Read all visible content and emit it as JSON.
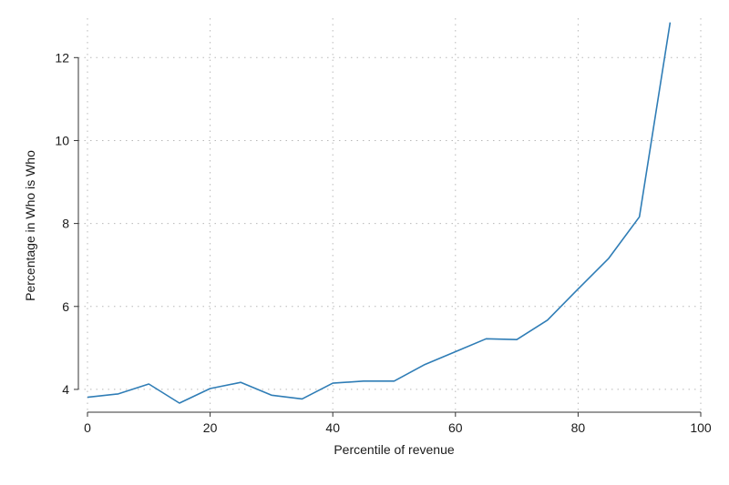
{
  "chart_data": {
    "type": "line",
    "xlabel": "Percentile of revenue",
    "ylabel": "Percentage in Who is Who",
    "xlim": [
      0,
      100
    ],
    "ylim": [
      3.45,
      12.95
    ],
    "x_ticks": [
      0,
      20,
      40,
      60,
      80,
      100
    ],
    "y_ticks": [
      4,
      6,
      8,
      10,
      12
    ],
    "grid": true,
    "series": [
      {
        "color": "#2f7db6",
        "points": [
          {
            "x": 0,
            "y": 3.81
          },
          {
            "x": 5,
            "y": 3.89
          },
          {
            "x": 10,
            "y": 4.13
          },
          {
            "x": 15,
            "y": 3.67
          },
          {
            "x": 20,
            "y": 4.02
          },
          {
            "x": 25,
            "y": 4.17
          },
          {
            "x": 30,
            "y": 3.86
          },
          {
            "x": 35,
            "y": 3.77
          },
          {
            "x": 40,
            "y": 4.15
          },
          {
            "x": 45,
            "y": 4.2
          },
          {
            "x": 50,
            "y": 4.2
          },
          {
            "x": 55,
            "y": 4.6
          },
          {
            "x": 60,
            "y": 4.91
          },
          {
            "x": 65,
            "y": 5.22
          },
          {
            "x": 70,
            "y": 5.2
          },
          {
            "x": 75,
            "y": 5.67
          },
          {
            "x": 80,
            "y": 6.42
          },
          {
            "x": 85,
            "y": 7.16
          },
          {
            "x": 90,
            "y": 8.16
          },
          {
            "x": 95,
            "y": 12.85
          }
        ]
      }
    ]
  }
}
